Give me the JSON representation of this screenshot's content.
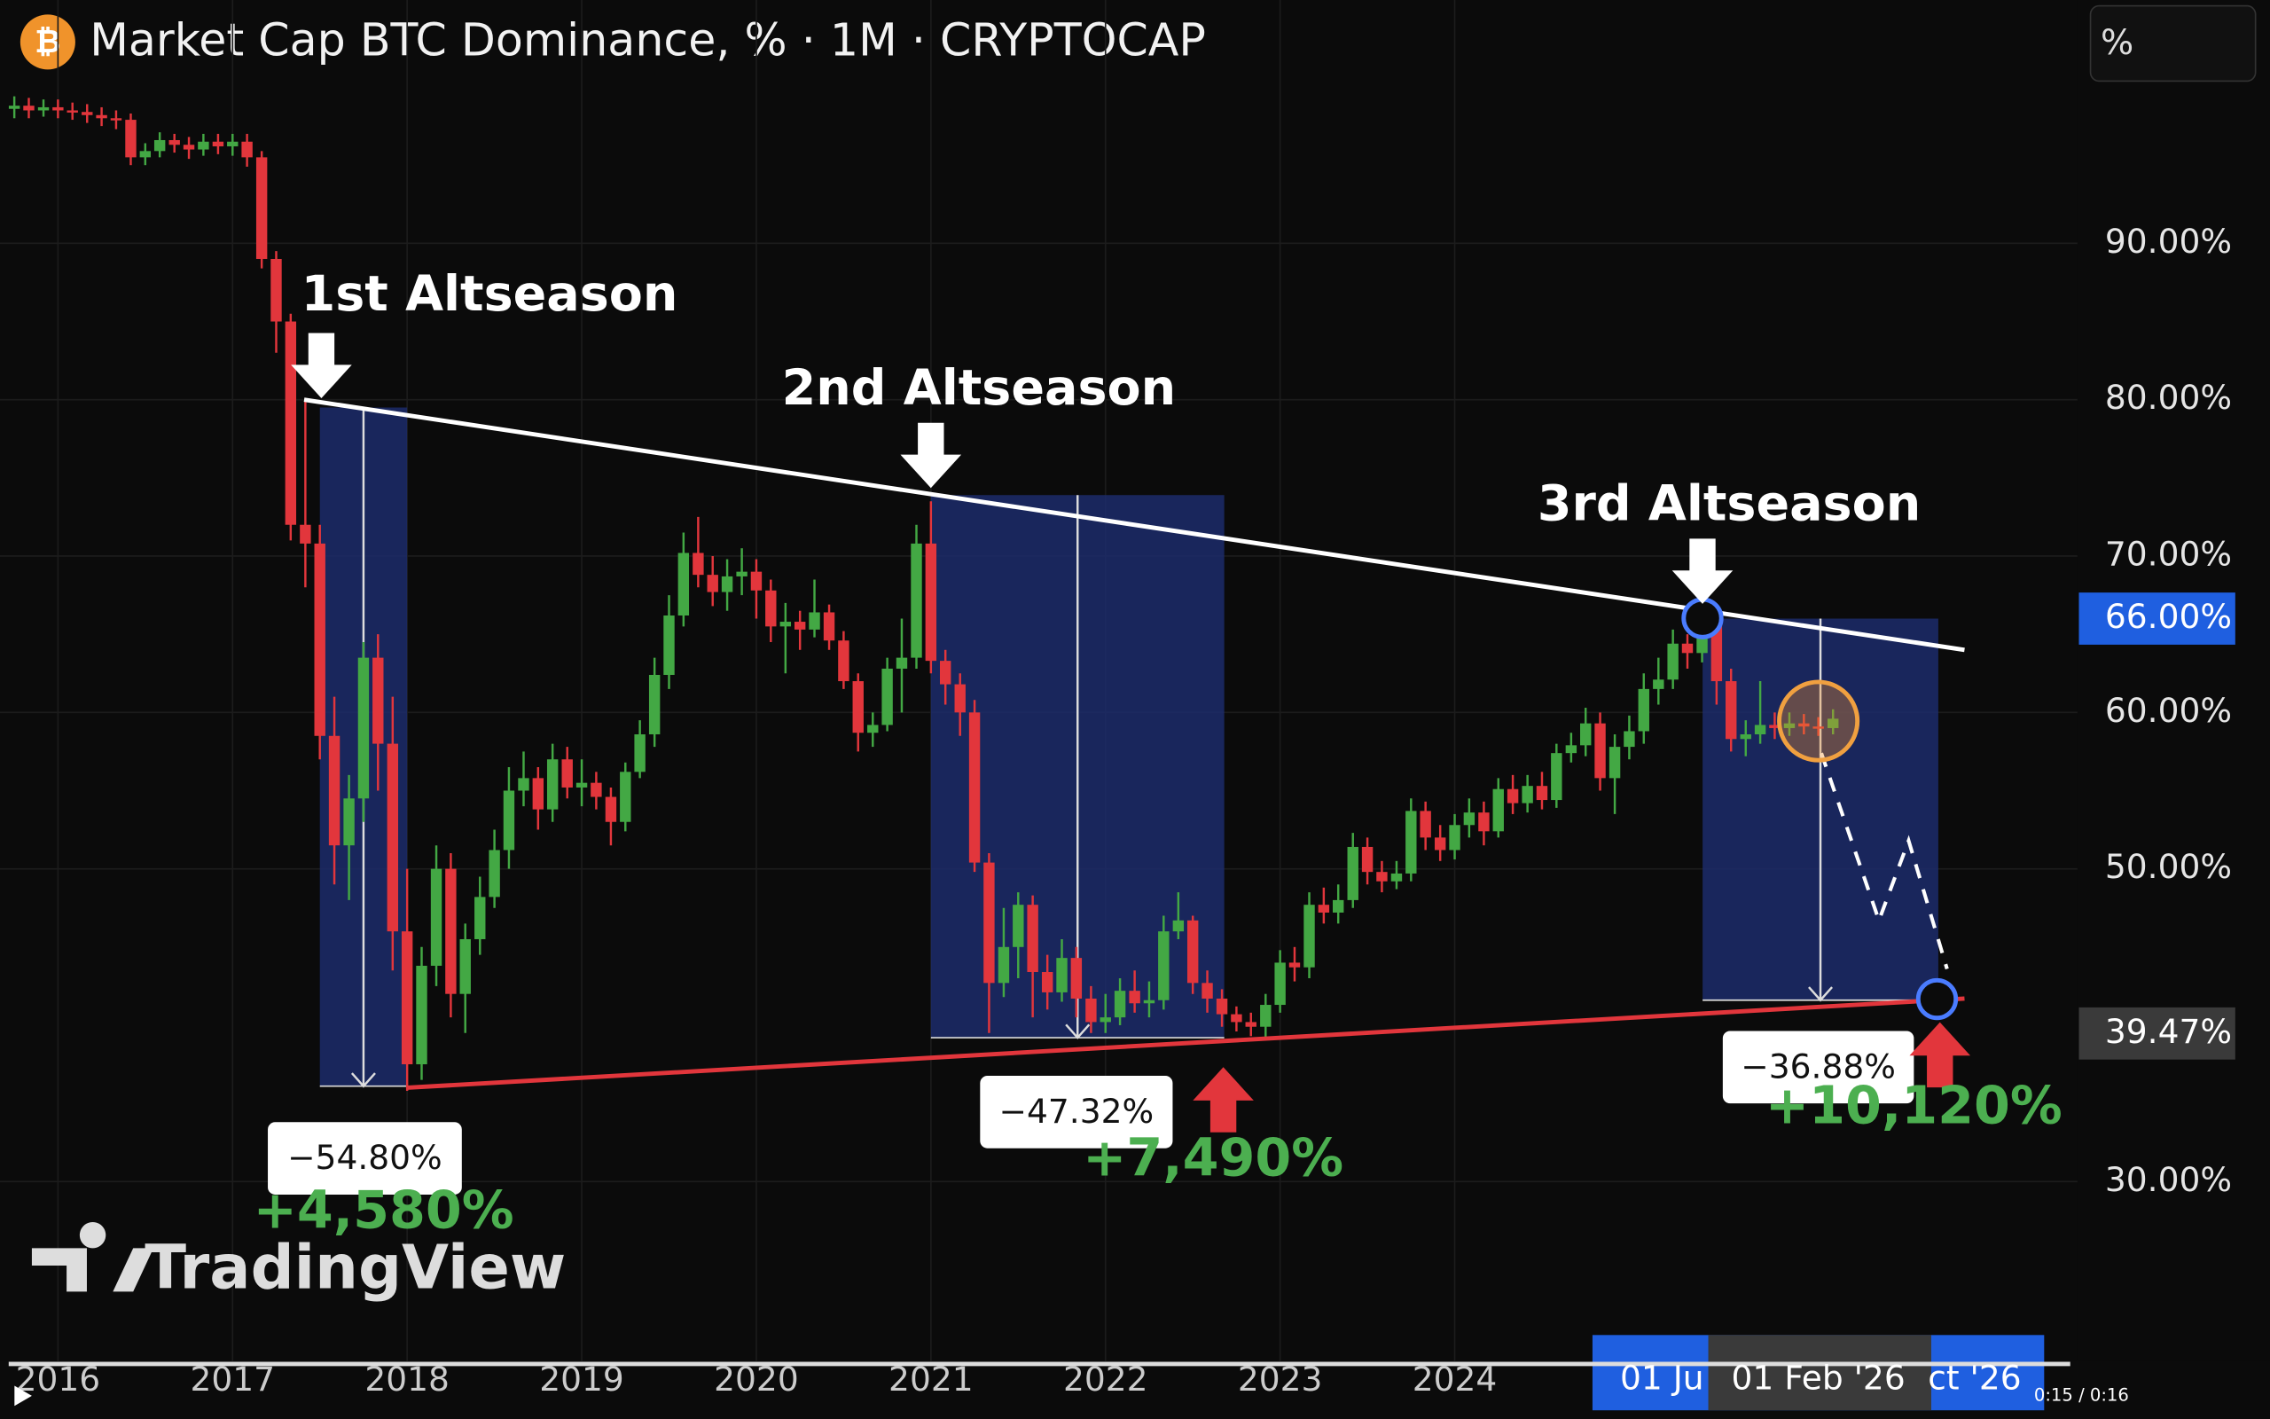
{
  "chart_data": {
    "type": "candlestick",
    "title": "Market Cap BTC Dominance, % · 1M · CRYPTOCAP",
    "scale_button": "%",
    "watermark": "TradingView",
    "up_color": "#43a844",
    "down_color": "#e2363c",
    "grid": true,
    "xlim": [
      2015.668,
      2027.567
    ],
    "ylim": [
      18.52,
      105.56
    ],
    "xticks": [
      2016,
      2017,
      2018,
      2019,
      2020,
      2021,
      2022,
      2023,
      2024
    ],
    "yticks": [
      {
        "value": 30,
        "label": "30.00%"
      },
      {
        "value": 50,
        "label": "50.00%"
      },
      {
        "value": 60,
        "label": "60.00%"
      },
      {
        "value": 70,
        "label": "70.00%"
      },
      {
        "value": 80,
        "label": "80.00%"
      },
      {
        "value": 90,
        "label": "90.00%"
      }
    ],
    "price_labels": [
      {
        "value": 66,
        "label": "66.00%",
        "color": "#1f5fe0"
      },
      {
        "value": 39.47,
        "label": "39.47%",
        "color": "#3a3a3a"
      }
    ],
    "x": [
      2015.75,
      2015.833,
      2015.917,
      2016,
      2016.083,
      2016.167,
      2016.25,
      2016.333,
      2016.417,
      2016.5,
      2016.583,
      2016.667,
      2016.75,
      2016.833,
      2016.917,
      2017,
      2017.083,
      2017.167,
      2017.25,
      2017.333,
      2017.417,
      2017.5,
      2017.583,
      2017.667,
      2017.75,
      2017.833,
      2017.917,
      2018,
      2018.083,
      2018.167,
      2018.25,
      2018.333,
      2018.417,
      2018.5,
      2018.583,
      2018.667,
      2018.75,
      2018.833,
      2018.917,
      2019,
      2019.083,
      2019.167,
      2019.25,
      2019.333,
      2019.417,
      2019.5,
      2019.583,
      2019.667,
      2019.75,
      2019.833,
      2019.917,
      2020,
      2020.083,
      2020.167,
      2020.25,
      2020.333,
      2020.417,
      2020.5,
      2020.583,
      2020.667,
      2020.75,
      2020.833,
      2020.917,
      2021,
      2021.083,
      2021.167,
      2021.25,
      2021.333,
      2021.417,
      2021.5,
      2021.583,
      2021.667,
      2021.75,
      2021.833,
      2021.917,
      2022,
      2022.083,
      2022.167,
      2022.25,
      2022.333,
      2022.417,
      2022.5,
      2022.583,
      2022.667,
      2022.75,
      2022.833,
      2022.917,
      2023,
      2023.083,
      2023.167,
      2023.25,
      2023.333,
      2023.417,
      2023.5,
      2023.583,
      2023.667,
      2023.75,
      2023.833,
      2023.917,
      2024,
      2024.083,
      2024.167,
      2024.25,
      2024.333,
      2024.417,
      2024.5,
      2024.583,
      2024.667,
      2024.75,
      2024.833,
      2024.917,
      2025,
      2025.083,
      2025.167,
      2025.25,
      2025.333,
      2025.417,
      2025.5,
      2025.583,
      2025.667,
      2025.75,
      2025.833,
      2025.917,
      2026,
      2026.083,
      2026.167
    ],
    "open": [
      98.6,
      98.8,
      98.5,
      98.7,
      98.5,
      98.4,
      98.2,
      98.0,
      97.9,
      95.5,
      95.9,
      96.6,
      96.3,
      96.0,
      96.5,
      96.2,
      96.5,
      95.5,
      89.0,
      85.0,
      72.0,
      70.8,
      58.5,
      51.5,
      54.5,
      63.5,
      58.0,
      46.0,
      37.5,
      43.8,
      50.0,
      42.0,
      45.5,
      48.2,
      51.2,
      55.0,
      55.8,
      53.8,
      57.0,
      55.2,
      55.5,
      54.6,
      53.0,
      56.2,
      58.6,
      62.4,
      66.2,
      70.2,
      68.8,
      67.7,
      68.7,
      69.0,
      67.8,
      65.5,
      65.8,
      65.3,
      66.4,
      64.6,
      62.0,
      58.7,
      59.2,
      62.8,
      63.5,
      70.8,
      63.3,
      61.8,
      60.0,
      50.4,
      42.7,
      45.0,
      47.7,
      43.4,
      42.1,
      44.3,
      41.7,
      40.2,
      40.5,
      42.2,
      41.4,
      41.6,
      46.0,
      46.7,
      42.7,
      41.7,
      40.7,
      40.2,
      39.9,
      41.3,
      44.0,
      43.7,
      47.7,
      47.2,
      48.0,
      51.4,
      49.8,
      49.2,
      49.7,
      53.7,
      52.0,
      51.2,
      52.8,
      53.6,
      52.4,
      55.1,
      54.2,
      55.3,
      54.4,
      57.4,
      57.9,
      59.3,
      55.8,
      57.8,
      58.8,
      61.5,
      62.1,
      64.4,
      63.8,
      65.7,
      62.0,
      58.3,
      58.6,
      59.2,
      59.0,
      59.3,
      59.1,
      59.0
    ],
    "high": [
      99.4,
      99.3,
      99.2,
      99.2,
      99.0,
      98.9,
      98.7,
      98.5,
      98.3,
      96.4,
      97.1,
      97.0,
      96.8,
      97.0,
      97.0,
      97.0,
      97.0,
      95.9,
      89.5,
      85.5,
      80.0,
      72.0,
      61.0,
      56.0,
      64.5,
      65.0,
      61.0,
      50.0,
      45.0,
      51.5,
      51.0,
      46.5,
      49.5,
      52.5,
      56.5,
      57.5,
      56.5,
      58.0,
      57.8,
      57.0,
      56.2,
      55.2,
      56.8,
      59.5,
      63.5,
      67.5,
      71.5,
      72.5,
      70.0,
      69.8,
      70.5,
      69.8,
      68.5,
      67.0,
      66.5,
      68.5,
      66.9,
      65.2,
      62.5,
      60.0,
      63.5,
      66.0,
      72.0,
      73.5,
      64.0,
      62.5,
      60.8,
      51.0,
      47.5,
      48.5,
      48.3,
      44.5,
      45.5,
      45.0,
      42.5,
      42.0,
      43.0,
      43.5,
      42.8,
      47.0,
      48.5,
      47.0,
      43.5,
      42.3,
      41.2,
      40.8,
      42.0,
      44.8,
      45.0,
      48.5,
      48.8,
      49.0,
      52.3,
      52.0,
      50.5,
      50.5,
      54.5,
      54.3,
      52.8,
      53.5,
      54.5,
      54.3,
      55.8,
      56.0,
      56.0,
      56.2,
      58.0,
      58.7,
      60.3,
      60.0,
      58.6,
      59.8,
      62.5,
      63.5,
      65.3,
      65.0,
      66.4,
      66.2,
      62.8,
      59.5,
      62.0,
      60.0,
      60.0,
      59.9,
      59.7,
      60.2
    ],
    "low": [
      98.0,
      98.0,
      98.1,
      98.0,
      97.9,
      97.7,
      97.5,
      97.3,
      95.0,
      95.0,
      95.5,
      95.8,
      95.4,
      95.6,
      95.7,
      95.6,
      94.9,
      88.4,
      83.0,
      71.0,
      68.0,
      57.0,
      49.0,
      48.0,
      53.0,
      55.0,
      43.5,
      35.8,
      36.5,
      42.5,
      40.5,
      39.5,
      44.5,
      47.5,
      50.0,
      54.0,
      52.5,
      53.0,
      54.5,
      54.0,
      53.8,
      51.5,
      52.4,
      55.8,
      57.8,
      61.5,
      65.5,
      68.0,
      66.8,
      66.5,
      67.5,
      66.0,
      64.5,
      62.5,
      64.0,
      64.8,
      64.0,
      61.5,
      57.5,
      57.8,
      58.8,
      60.0,
      62.8,
      62.5,
      60.5,
      58.5,
      49.8,
      39.5,
      41.8,
      43.0,
      40.5,
      41.0,
      41.5,
      40.5,
      39.5,
      39.5,
      40.0,
      40.8,
      40.5,
      41.0,
      45.5,
      42.0,
      40.8,
      39.9,
      39.6,
      39.3,
      39.2,
      40.8,
      42.8,
      43.0,
      46.5,
      46.5,
      47.5,
      49.0,
      48.5,
      48.7,
      49.2,
      51.2,
      50.5,
      50.6,
      52.0,
      51.5,
      52.0,
      53.5,
      53.6,
      53.8,
      53.9,
      56.8,
      57.2,
      55.0,
      53.5,
      57.0,
      58.0,
      60.5,
      61.5,
      62.8,
      63.2,
      60.5,
      57.5,
      57.2,
      58.0,
      58.3,
      58.5,
      58.6,
      58.5,
      58.6
    ],
    "close": [
      98.8,
      98.5,
      98.7,
      98.5,
      98.4,
      98.2,
      98.0,
      97.9,
      95.5,
      95.9,
      96.6,
      96.3,
      96.0,
      96.5,
      96.2,
      96.5,
      95.5,
      89.0,
      85.0,
      72.0,
      70.8,
      58.5,
      51.5,
      54.5,
      63.5,
      58.0,
      46.0,
      37.5,
      43.8,
      50.0,
      42.0,
      45.5,
      48.2,
      51.2,
      55.0,
      55.8,
      53.8,
      57.0,
      55.2,
      55.5,
      54.6,
      53.0,
      56.2,
      58.6,
      62.4,
      66.2,
      70.2,
      68.8,
      67.7,
      68.7,
      69.0,
      67.8,
      65.5,
      65.8,
      65.3,
      66.4,
      64.6,
      62.0,
      58.7,
      59.2,
      62.8,
      63.5,
      70.8,
      63.3,
      61.8,
      60.0,
      50.4,
      42.7,
      45.0,
      47.7,
      43.4,
      42.1,
      44.3,
      41.7,
      40.2,
      40.5,
      42.2,
      41.4,
      41.6,
      46.0,
      46.7,
      42.7,
      41.7,
      40.7,
      40.2,
      39.9,
      41.3,
      44.0,
      43.7,
      47.7,
      47.2,
      48.0,
      51.4,
      49.8,
      49.2,
      49.7,
      53.7,
      52.0,
      51.2,
      52.8,
      53.6,
      52.4,
      55.1,
      54.2,
      55.3,
      54.4,
      57.4,
      57.9,
      59.3,
      55.8,
      57.8,
      58.8,
      61.5,
      62.1,
      64.4,
      63.8,
      65.7,
      62.0,
      58.3,
      58.6,
      59.2,
      59.0,
      59.3,
      59.1,
      59.0,
      59.6
    ],
    "ranges": [
      {
        "x": [
          2017.5,
          2018.0
        ],
        "y": [
          79.5,
          36.1
        ],
        "color": "#1c2c6b"
      },
      {
        "x": [
          2021.0,
          2022.68
        ],
        "y": [
          73.9,
          39.2
        ],
        "color": "#1c2c6b"
      },
      {
        "x": [
          2025.42,
          2026.77
        ],
        "y": [
          66.0,
          41.6
        ],
        "color": "#1c2c6b"
      }
    ],
    "trendlines": [
      {
        "x": [
          2017.41,
          2026.92
        ],
        "y": [
          80.0,
          64.0
        ],
        "color": "#ffffff"
      },
      {
        "x": [
          2018.0,
          2026.92
        ],
        "y": [
          36.0,
          41.7
        ],
        "color": "#e2363c"
      }
    ],
    "projection": {
      "x": [
        2026.1,
        2026.43,
        2026.6,
        2026.82
      ],
      "y": [
        57.4,
        46.7,
        51.8,
        43.6
      ],
      "color": "#ffffff"
    },
    "annotations": [
      "1st Altseason",
      "2nd Altseason",
      "3rd Altseason"
    ],
    "drop_labels": [
      "−54.80%",
      "−47.32%",
      "−36.88%"
    ],
    "gain_labels": [
      "+4,580%",
      "+7,490%",
      "+10,120%"
    ],
    "crosshair_labels": [
      "01 Ju",
      "01 Feb '26",
      "ct '26"
    ]
  },
  "player": {
    "time": "0:15 / 0:16"
  }
}
